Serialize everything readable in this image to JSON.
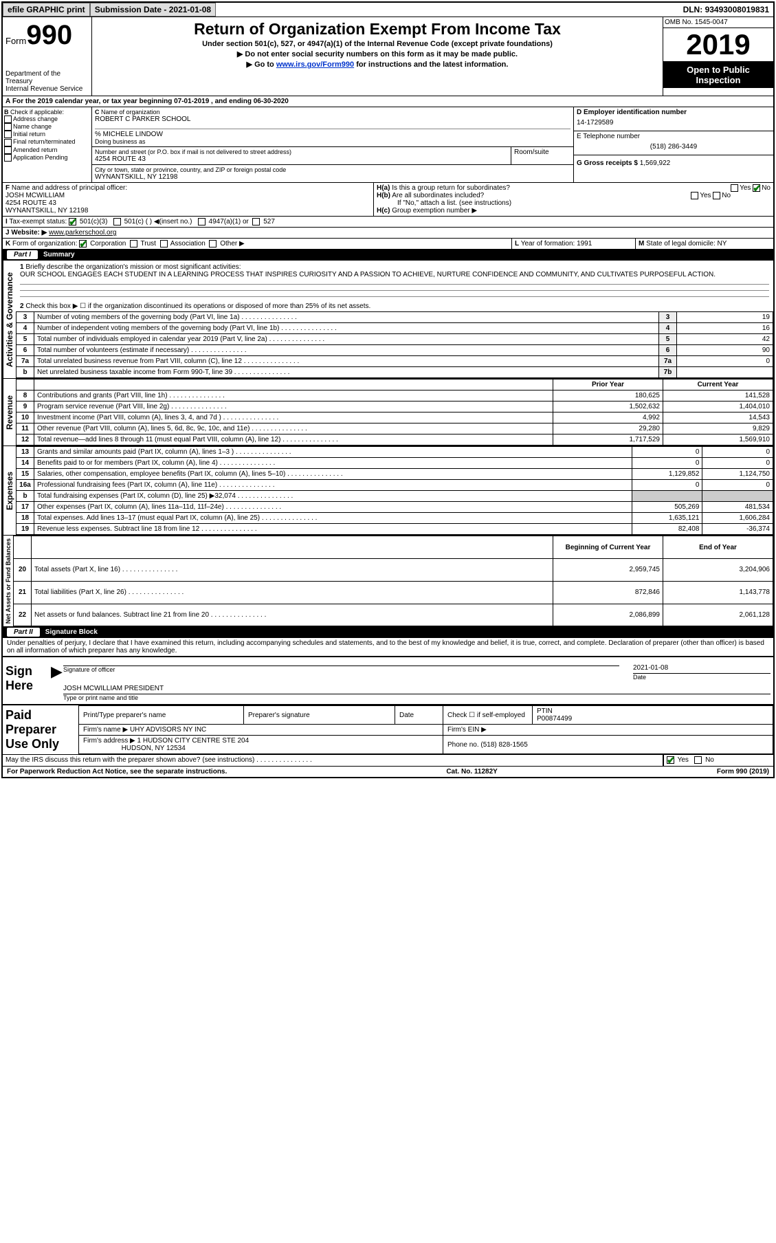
{
  "topbar": {
    "efile": "efile GRAPHIC print",
    "subm_label": "Submission Date - ",
    "subm_date": "2021-01-08",
    "dln_label": "DLN: ",
    "dln": "93493008019831"
  },
  "hdr": {
    "form_word": "Form",
    "form_no": "990",
    "dept": "Department of the Treasury\nInternal Revenue Service",
    "title": "Return of Organization Exempt From Income Tax",
    "sub1": "Under section 501(c), 527, or 4947(a)(1) of the Internal Revenue Code (except private foundations)",
    "sub2": "▶ Do not enter social security numbers on this form as it may be made public.",
    "sub3a": "▶ Go to ",
    "sub3_link": "www.irs.gov/Form990",
    "sub3b": " for instructions and the latest information.",
    "omb": "OMB No. 1545-0047",
    "year": "2019",
    "inspect": "Open to Public Inspection"
  },
  "A": {
    "text": "For the 2019 calendar year, or tax year beginning 07-01-2019   , and ending 06-30-2020"
  },
  "B": {
    "title": "Check if applicable:",
    "opts": [
      "Address change",
      "Name change",
      "Initial return",
      "Final return/terminated",
      "Amended return",
      "Application Pending"
    ]
  },
  "C": {
    "name_lbl": "Name of organization",
    "name": "ROBERT C PARKER SCHOOL",
    "care": "% MICHELE LINDOW",
    "dba_lbl": "Doing business as",
    "street_lbl": "Number and street (or P.O. box if mail is not delivered to street address)",
    "room_lbl": "Room/suite",
    "street": "4254 ROUTE 43",
    "city_lbl": "City or town, state or province, country, and ZIP or foreign postal code",
    "city": "WYNANTSKILL, NY  12198"
  },
  "D": {
    "lbl": "Employer identification number",
    "val": "14-1729589"
  },
  "E": {
    "lbl": "E Telephone number",
    "val": "(518) 286-3449"
  },
  "G": {
    "lbl": "G Gross receipts $ ",
    "val": "1,569,922"
  },
  "F": {
    "lbl": "Name and address of principal officer:",
    "name": "JOSH MCWILLIAM",
    "addr1": "4254 ROUTE 43",
    "addr2": "WYNANTSKILL, NY  12198"
  },
  "H": {
    "a": "Is this a group return for subordinates?",
    "a_yes": "Yes",
    "a_no": "No",
    "b": "Are all subordinates included?",
    "note": "If \"No,\" attach a list. (see instructions)",
    "c": "Group exemption number ▶"
  },
  "I": {
    "lbl": "Tax-exempt status:",
    "v501c3": "501(c)(3)",
    "v501c": "501(c) (   ) ◀(insert no.)",
    "v4947": "4947(a)(1) or",
    "v527": "527"
  },
  "J": {
    "lbl": "Website: ▶",
    "val": "www.parkerschool.org"
  },
  "K": {
    "lbl": "Form of organization:",
    "corp": "Corporation",
    "trust": "Trust",
    "assoc": "Association",
    "other": "Other ▶"
  },
  "L": {
    "lbl": "Year of formation: ",
    "val": "1991"
  },
  "M": {
    "lbl": "State of legal domicile: ",
    "val": "NY"
  },
  "part1": {
    "hdr": "Part I",
    "title": "Summary",
    "l1_lbl": "Briefly describe the organization's mission or most significant activities:",
    "l1": "OUR SCHOOL ENGAGES EACH STUDENT IN A LEARNING PROCESS THAT INSPIRES CURIOSITY AND A PASSION TO ACHIEVE, NURTURE CONFIDENCE AND COMMUNITY, AND CULTIVATES PURPOSEFUL ACTION.",
    "l2": "Check this box ▶ ☐ if the organization discontinued its operations or disposed of more than 25% of its net assets.",
    "sides": [
      "Activities & Governance",
      "Revenue",
      "Expenses",
      "Net Assets or Fund Balances"
    ],
    "gov": [
      {
        "n": "3",
        "t": "Number of voting members of the governing body (Part VI, line 1a)",
        "b": "3",
        "v": "19"
      },
      {
        "n": "4",
        "t": "Number of independent voting members of the governing body (Part VI, line 1b)",
        "b": "4",
        "v": "16"
      },
      {
        "n": "5",
        "t": "Total number of individuals employed in calendar year 2019 (Part V, line 2a)",
        "b": "5",
        "v": "42"
      },
      {
        "n": "6",
        "t": "Total number of volunteers (estimate if necessary)",
        "b": "6",
        "v": "90"
      },
      {
        "n": "7a",
        "t": "Total unrelated business revenue from Part VIII, column (C), line 12",
        "b": "7a",
        "v": "0"
      },
      {
        "n": "b",
        "t": "Net unrelated business taxable income from Form 990-T, line 39",
        "b": "7b",
        "v": ""
      }
    ],
    "py": "Prior Year",
    "cy": "Current Year",
    "rev": [
      {
        "n": "8",
        "t": "Contributions and grants (Part VIII, line 1h)",
        "p": "180,625",
        "c": "141,528"
      },
      {
        "n": "9",
        "t": "Program service revenue (Part VIII, line 2g)",
        "p": "1,502,632",
        "c": "1,404,010"
      },
      {
        "n": "10",
        "t": "Investment income (Part VIII, column (A), lines 3, 4, and 7d )",
        "p": "4,992",
        "c": "14,543"
      },
      {
        "n": "11",
        "t": "Other revenue (Part VIII, column (A), lines 5, 6d, 8c, 9c, 10c, and 11e)",
        "p": "29,280",
        "c": "9,829"
      },
      {
        "n": "12",
        "t": "Total revenue—add lines 8 through 11 (must equal Part VIII, column (A), line 12)",
        "p": "1,717,529",
        "c": "1,569,910"
      }
    ],
    "exp": [
      {
        "n": "13",
        "t": "Grants and similar amounts paid (Part IX, column (A), lines 1–3 )",
        "p": "0",
        "c": "0"
      },
      {
        "n": "14",
        "t": "Benefits paid to or for members (Part IX, column (A), line 4)",
        "p": "0",
        "c": "0"
      },
      {
        "n": "15",
        "t": "Salaries, other compensation, employee benefits (Part IX, column (A), lines 5–10)",
        "p": "1,129,852",
        "c": "1,124,750"
      },
      {
        "n": "16a",
        "t": "Professional fundraising fees (Part IX, column (A), line 11e)",
        "p": "0",
        "c": "0"
      },
      {
        "n": "b",
        "t": "Total fundraising expenses (Part IX, column (D), line 25) ▶32,074",
        "p": "shade",
        "c": "shade"
      },
      {
        "n": "17",
        "t": "Other expenses (Part IX, column (A), lines 11a–11d, 11f–24e)",
        "p": "505,269",
        "c": "481,534"
      },
      {
        "n": "18",
        "t": "Total expenses. Add lines 13–17 (must equal Part IX, column (A), line 25)",
        "p": "1,635,121",
        "c": "1,606,284"
      },
      {
        "n": "19",
        "t": "Revenue less expenses. Subtract line 18 from line 12",
        "p": "82,408",
        "c": "-36,374"
      }
    ],
    "boy": "Beginning of Current Year",
    "eoy": "End of Year",
    "net": [
      {
        "n": "20",
        "t": "Total assets (Part X, line 16)",
        "p": "2,959,745",
        "c": "3,204,906"
      },
      {
        "n": "21",
        "t": "Total liabilities (Part X, line 26)",
        "p": "872,846",
        "c": "1,143,778"
      },
      {
        "n": "22",
        "t": "Net assets or fund balances. Subtract line 21 from line 20",
        "p": "2,086,899",
        "c": "2,061,128"
      }
    ]
  },
  "part2": {
    "hdr": "Part II",
    "title": "Signature Block",
    "decl": "Under penalties of perjury, I declare that I have examined this return, including accompanying schedules and statements, and to the best of my knowledge and belief, it is true, correct, and complete. Declaration of preparer (other than officer) is based on all information of which preparer has any knowledge.",
    "sign": "Sign Here",
    "sig_lbl": "Signature of officer",
    "date_lbl": "Date",
    "date": "2021-01-08",
    "name": "JOSH MCWILLIAM  PRESIDENT",
    "name_lbl": "Type or print name and title"
  },
  "paid": {
    "hdr": "Paid Preparer Use Only",
    "h_name": "Print/Type preparer's name",
    "h_sig": "Preparer's signature",
    "h_date": "Date",
    "h_chk": "Check ☐ if self-employed",
    "h_ptin": "PTIN",
    "ptin": "P00874499",
    "firm_lbl": "Firm's name  ▶",
    "firm": "UHY ADVISORS NY INC",
    "ein_lbl": "Firm's EIN ▶",
    "addr_lbl": "Firm's address ▶",
    "addr1": "1 HUDSON CITY CENTRE STE 204",
    "addr2": "HUDSON, NY  12534",
    "ph_lbl": "Phone no. ",
    "ph": "(518) 828-1565"
  },
  "disc": {
    "q": "May the IRS discuss this return with the preparer shown above? (see instructions)",
    "yes": "Yes",
    "no": "No"
  },
  "footer": {
    "l": "For Paperwork Reduction Act Notice, see the separate instructions.",
    "m": "Cat. No. 11282Y",
    "r": "Form 990 (2019)"
  }
}
